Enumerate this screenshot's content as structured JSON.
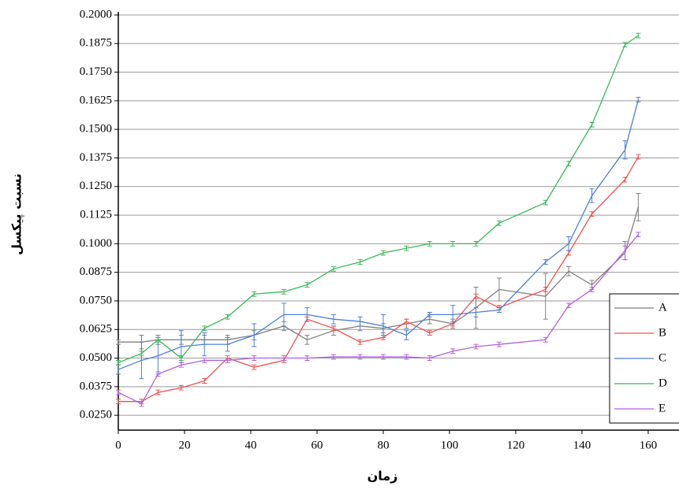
{
  "chart_data": {
    "type": "line",
    "x_label": "زمان",
    "y_label": "نسبت پیکسل",
    "x": [
      0,
      7,
      12,
      19,
      26,
      33,
      41,
      50,
      57,
      65,
      73,
      80,
      87,
      94,
      101,
      108,
      115,
      129,
      136,
      143,
      153,
      157
    ],
    "series": [
      {
        "name": "A",
        "color": "#808080",
        "values": [
          0.057,
          0.057,
          0.058,
          0.058,
          0.058,
          0.058,
          0.06,
          0.064,
          0.058,
          0.062,
          0.064,
          0.063,
          0.065,
          0.067,
          0.065,
          0.072,
          0.08,
          0.077,
          0.088,
          0.082,
          0.096,
          0.116
        ],
        "errors": [
          0.001,
          0.003,
          0.002,
          0.002,
          0.002,
          0.002,
          0.002,
          0.002,
          0.002,
          0.002,
          0.002,
          0.002,
          0.002,
          0.002,
          0.002,
          0.009,
          0.005,
          0.01,
          0.002,
          0.002,
          0.003,
          0.006
        ]
      },
      {
        "name": "B",
        "color": "#f05050",
        "values": [
          0.031,
          0.031,
          0.035,
          0.037,
          0.04,
          0.05,
          0.046,
          0.049,
          0.067,
          0.063,
          0.057,
          0.059,
          0.066,
          0.061,
          0.065,
          0.077,
          0.072,
          0.08,
          0.096,
          0.113,
          0.128,
          0.138
        ],
        "errors": [
          0.001,
          0.001,
          0.001,
          0.001,
          0.001,
          0.001,
          0.001,
          0.001,
          0.001,
          0.001,
          0.001,
          0.001,
          0.001,
          0.001,
          0.001,
          0.001,
          0.001,
          0.001,
          0.001,
          0.001,
          0.001,
          0.001
        ]
      },
      {
        "name": "C",
        "color": "#4a7fd8",
        "values": [
          0.045,
          0.049,
          0.051,
          0.055,
          0.056,
          0.056,
          0.06,
          0.069,
          0.069,
          0.067,
          0.066,
          0.064,
          0.06,
          0.069,
          0.069,
          0.07,
          0.071,
          0.092,
          0.1,
          0.121,
          0.141,
          0.163
        ],
        "errors": [
          0.002,
          0.008,
          0.008,
          0.007,
          0.005,
          0.003,
          0.005,
          0.005,
          0.003,
          0.002,
          0.002,
          0.005,
          0.002,
          0.001,
          0.004,
          0.002,
          0.001,
          0.001,
          0.003,
          0.003,
          0.004,
          0.001
        ]
      },
      {
        "name": "D",
        "color": "#3cb85a",
        "values": [
          0.048,
          0.052,
          0.058,
          0.05,
          0.063,
          0.068,
          0.078,
          0.079,
          0.082,
          0.089,
          0.092,
          0.096,
          0.098,
          0.1,
          0.1,
          0.1,
          0.109,
          0.118,
          0.135,
          0.152,
          0.187,
          0.191
        ],
        "errors": [
          0.001,
          0.001,
          0.001,
          0.001,
          0.001,
          0.001,
          0.001,
          0.001,
          0.001,
          0.001,
          0.001,
          0.001,
          0.001,
          0.001,
          0.001,
          0.001,
          0.001,
          0.001,
          0.001,
          0.001,
          0.001,
          0.001
        ]
      },
      {
        "name": "E",
        "color": "#b060e0",
        "values": [
          0.035,
          0.03,
          0.043,
          0.047,
          0.049,
          0.049,
          0.05,
          0.05,
          0.05,
          0.0505,
          0.0505,
          0.0505,
          0.0505,
          0.05,
          0.053,
          0.055,
          0.056,
          0.058,
          0.073,
          0.08,
          0.097,
          0.104
        ],
        "errors": [
          0.001,
          0.001,
          0.001,
          0.001,
          0.001,
          0.001,
          0.001,
          0.001,
          0.001,
          0.001,
          0.001,
          0.001,
          0.001,
          0.001,
          0.001,
          0.001,
          0.001,
          0.001,
          0.001,
          0.001,
          0.004,
          0.001
        ]
      }
    ],
    "xlim": [
      0,
      169.3
    ],
    "xticks": [
      0,
      20,
      40,
      60,
      80,
      100,
      120,
      140,
      160
    ],
    "ylim": [
      0.0185,
      0.2
    ],
    "yticks": [
      {
        "value": 0.025,
        "label": "0.0250"
      },
      {
        "value": 0.0375,
        "label": "0.0375"
      },
      {
        "value": 0.05,
        "label": "0.0500"
      },
      {
        "value": 0.0625,
        "label": "0.0625"
      },
      {
        "value": 0.075,
        "label": "0.0750"
      },
      {
        "value": 0.0875,
        "label": "0.0875"
      },
      {
        "value": 0.1,
        "label": "0.1000"
      },
      {
        "value": 0.1125,
        "label": "0.1125"
      },
      {
        "value": 0.125,
        "label": "0.1250"
      },
      {
        "value": 0.1375,
        "label": "0.1375"
      },
      {
        "value": 0.15,
        "label": "0.1500"
      },
      {
        "value": 0.1625,
        "label": "0.1625"
      },
      {
        "value": 0.175,
        "label": "0.1750"
      },
      {
        "value": 0.1875,
        "label": "0.1875"
      },
      {
        "value": 0.2,
        "label": "0.2000"
      }
    ],
    "grid": true,
    "legend": "lower right"
  }
}
